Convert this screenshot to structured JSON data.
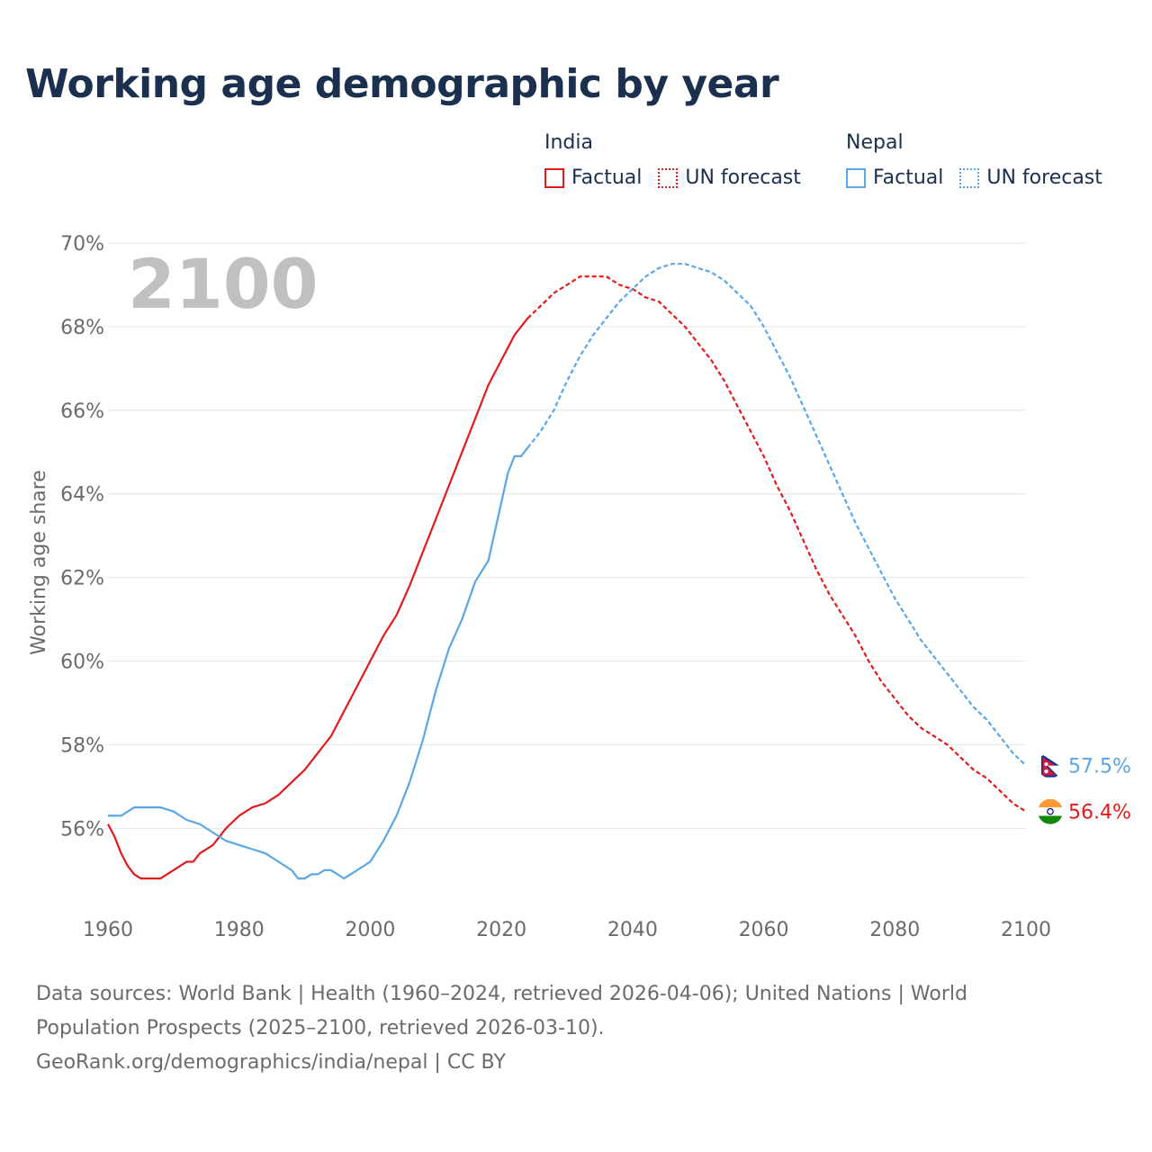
{
  "title": "Working age demographic by year",
  "year_overlay": "2100",
  "legend": {
    "groups": [
      {
        "name": "India",
        "factual": "Factual",
        "forecast": "UN forecast",
        "color": "#e31a1c"
      },
      {
        "name": "Nepal",
        "factual": "Factual",
        "forecast": "UN forecast",
        "color": "#5aa6e6"
      }
    ]
  },
  "source": {
    "line1": "Data sources: World Bank | Health (1960–2024, retrieved 2026-04-06); United Nations | World",
    "line2": "Population Prospects (2025–2100, retrieved 2026-03-10).",
    "line3": "GeoRank.org/demographics/india/nepal | CC BY"
  },
  "colors": {
    "india": "#e31a1c",
    "nepal": "#5aa6e6",
    "title": "#1b2f4f",
    "grid": "#e6e6e6",
    "axis_text": "#6b6b6b",
    "year_overlay": "#c0c0c0"
  },
  "chart_data": {
    "type": "line",
    "title": "Working age demographic by year",
    "xlabel": "",
    "ylabel": "Working age share",
    "xlim": [
      1960,
      2100
    ],
    "ylim": [
      54.5,
      70
    ],
    "x_ticks": [
      1960,
      1980,
      2000,
      2020,
      2040,
      2060,
      2080,
      2100
    ],
    "x_tick_labels": [
      "1960",
      "1980",
      "2000",
      "2020",
      "2040",
      "2060",
      "2080",
      "2100"
    ],
    "y_ticks": [
      56,
      58,
      60,
      62,
      64,
      66,
      68,
      70
    ],
    "y_tick_labels": [
      "56%",
      "58%",
      "60%",
      "62%",
      "64%",
      "66%",
      "68%",
      "70%"
    ],
    "factual_end_year": 2024,
    "series": [
      {
        "name": "India",
        "color": "#e31a1c",
        "end_label": "56.4%",
        "points": [
          [
            1960,
            56.1
          ],
          [
            1961,
            55.8
          ],
          [
            1962,
            55.4
          ],
          [
            1963,
            55.1
          ],
          [
            1964,
            54.9
          ],
          [
            1965,
            54.8
          ],
          [
            1966,
            54.8
          ],
          [
            1967,
            54.8
          ],
          [
            1968,
            54.8
          ],
          [
            1970,
            55.0
          ],
          [
            1972,
            55.2
          ],
          [
            1973,
            55.2
          ],
          [
            1974,
            55.4
          ],
          [
            1976,
            55.6
          ],
          [
            1978,
            56.0
          ],
          [
            1980,
            56.3
          ],
          [
            1982,
            56.5
          ],
          [
            1984,
            56.6
          ],
          [
            1986,
            56.8
          ],
          [
            1988,
            57.1
          ],
          [
            1990,
            57.4
          ],
          [
            1992,
            57.8
          ],
          [
            1994,
            58.2
          ],
          [
            1996,
            58.8
          ],
          [
            1998,
            59.4
          ],
          [
            2000,
            60.0
          ],
          [
            2002,
            60.6
          ],
          [
            2004,
            61.1
          ],
          [
            2006,
            61.8
          ],
          [
            2008,
            62.6
          ],
          [
            2010,
            63.4
          ],
          [
            2012,
            64.2
          ],
          [
            2014,
            65.0
          ],
          [
            2016,
            65.8
          ],
          [
            2018,
            66.6
          ],
          [
            2020,
            67.2
          ],
          [
            2022,
            67.8
          ],
          [
            2024,
            68.2
          ],
          [
            2026,
            68.5
          ],
          [
            2028,
            68.8
          ],
          [
            2030,
            69.0
          ],
          [
            2032,
            69.2
          ],
          [
            2034,
            69.2
          ],
          [
            2036,
            69.2
          ],
          [
            2038,
            69.0
          ],
          [
            2040,
            68.9
          ],
          [
            2042,
            68.7
          ],
          [
            2044,
            68.6
          ],
          [
            2046,
            68.3
          ],
          [
            2048,
            68.0
          ],
          [
            2050,
            67.6
          ],
          [
            2052,
            67.2
          ],
          [
            2054,
            66.7
          ],
          [
            2056,
            66.1
          ],
          [
            2058,
            65.5
          ],
          [
            2060,
            64.9
          ],
          [
            2062,
            64.2
          ],
          [
            2064,
            63.6
          ],
          [
            2066,
            62.9
          ],
          [
            2068,
            62.2
          ],
          [
            2070,
            61.6
          ],
          [
            2072,
            61.1
          ],
          [
            2074,
            60.6
          ],
          [
            2076,
            60.0
          ],
          [
            2078,
            59.5
          ],
          [
            2080,
            59.1
          ],
          [
            2082,
            58.7
          ],
          [
            2084,
            58.4
          ],
          [
            2086,
            58.2
          ],
          [
            2088,
            58.0
          ],
          [
            2090,
            57.7
          ],
          [
            2092,
            57.4
          ],
          [
            2094,
            57.2
          ],
          [
            2096,
            56.9
          ],
          [
            2098,
            56.6
          ],
          [
            2100,
            56.4
          ]
        ]
      },
      {
        "name": "Nepal",
        "color": "#5aa6e6",
        "end_label": "57.5%",
        "points": [
          [
            1960,
            56.3
          ],
          [
            1962,
            56.3
          ],
          [
            1964,
            56.5
          ],
          [
            1966,
            56.5
          ],
          [
            1968,
            56.5
          ],
          [
            1970,
            56.4
          ],
          [
            1972,
            56.2
          ],
          [
            1974,
            56.1
          ],
          [
            1976,
            55.9
          ],
          [
            1978,
            55.7
          ],
          [
            1980,
            55.6
          ],
          [
            1982,
            55.5
          ],
          [
            1984,
            55.4
          ],
          [
            1986,
            55.2
          ],
          [
            1988,
            55.0
          ],
          [
            1989,
            54.8
          ],
          [
            1990,
            54.8
          ],
          [
            1991,
            54.9
          ],
          [
            1992,
            54.9
          ],
          [
            1993,
            55.0
          ],
          [
            1994,
            55.0
          ],
          [
            1996,
            54.8
          ],
          [
            1998,
            55.0
          ],
          [
            2000,
            55.2
          ],
          [
            2002,
            55.7
          ],
          [
            2004,
            56.3
          ],
          [
            2006,
            57.1
          ],
          [
            2008,
            58.1
          ],
          [
            2010,
            59.3
          ],
          [
            2012,
            60.3
          ],
          [
            2014,
            61.0
          ],
          [
            2016,
            61.9
          ],
          [
            2018,
            62.4
          ],
          [
            2019,
            63.1
          ],
          [
            2020,
            63.8
          ],
          [
            2021,
            64.5
          ],
          [
            2022,
            64.9
          ],
          [
            2023,
            64.9
          ],
          [
            2024,
            65.1
          ],
          [
            2026,
            65.5
          ],
          [
            2028,
            66.0
          ],
          [
            2030,
            66.7
          ],
          [
            2032,
            67.3
          ],
          [
            2034,
            67.8
          ],
          [
            2036,
            68.2
          ],
          [
            2038,
            68.6
          ],
          [
            2040,
            68.9
          ],
          [
            2042,
            69.2
          ],
          [
            2044,
            69.4
          ],
          [
            2046,
            69.5
          ],
          [
            2048,
            69.5
          ],
          [
            2050,
            69.4
          ],
          [
            2052,
            69.3
          ],
          [
            2054,
            69.1
          ],
          [
            2056,
            68.8
          ],
          [
            2058,
            68.5
          ],
          [
            2060,
            68.0
          ],
          [
            2062,
            67.4
          ],
          [
            2064,
            66.8
          ],
          [
            2066,
            66.1
          ],
          [
            2068,
            65.4
          ],
          [
            2070,
            64.7
          ],
          [
            2072,
            64.0
          ],
          [
            2074,
            63.3
          ],
          [
            2076,
            62.7
          ],
          [
            2078,
            62.1
          ],
          [
            2080,
            61.5
          ],
          [
            2082,
            61.0
          ],
          [
            2084,
            60.5
          ],
          [
            2086,
            60.1
          ],
          [
            2088,
            59.7
          ],
          [
            2090,
            59.3
          ],
          [
            2092,
            58.9
          ],
          [
            2094,
            58.6
          ],
          [
            2096,
            58.2
          ],
          [
            2098,
            57.8
          ],
          [
            2100,
            57.5
          ]
        ]
      }
    ]
  }
}
